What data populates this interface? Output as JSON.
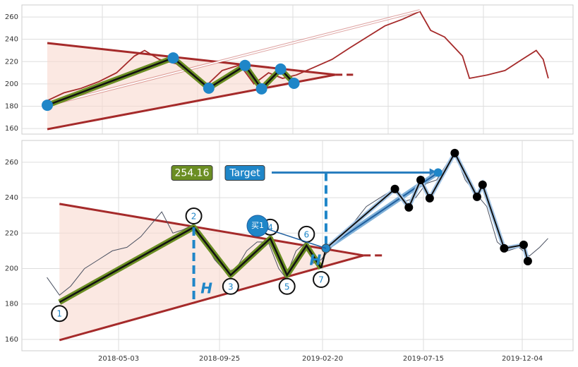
{
  "chart_data": [
    {
      "type": "line",
      "series": [
        {
          "color": "#a52a2a",
          "x": [
            "2018-01-20",
            "2018-02-15",
            "2018-03-14",
            "2018-04-11",
            "2018-05-09",
            "2018-06-06",
            "2018-06-22",
            "2018-07-15",
            "2018-08-11",
            "2018-09-08",
            "2018-09-30",
            "2018-10-22",
            "2018-11-19",
            "2018-12-11",
            "2019-01-03",
            "2019-01-25",
            "2019-02-16",
            "2019-03-16",
            "2019-04-13",
            "2019-05-10",
            "2019-06-07",
            "2019-07-05",
            "2019-08-02",
            "2019-08-29",
            "2019-09-15",
            "2019-10-07",
            "2019-11-04",
            "2019-11-15",
            "2019-12-13",
            "2020-01-10",
            "2020-02-06",
            "2020-02-28",
            "2020-03-10",
            "2020-03-18"
          ],
          "values": [
            185,
            192,
            196,
            202,
            210,
            225,
            230,
            222,
            218,
            205,
            200,
            212,
            217,
            200,
            210,
            205,
            208,
            215,
            222,
            232,
            242,
            252,
            258,
            265,
            248,
            242,
            225,
            205,
            208,
            212,
            222,
            230,
            222,
            205
          ]
        }
      ],
      "xlim": [
        "2017-12-11",
        "2020-04-26"
      ],
      "ylim": [
        155,
        270.8
      ],
      "yticks": [
        160,
        180,
        200,
        220,
        240,
        260
      ],
      "grid": true,
      "pattern": {
        "x": [
          "2018-01-20",
          "2018-08-06",
          "2018-10-01",
          "2018-11-27",
          "2018-12-23",
          "2019-01-22",
          "2019-02-12"
        ],
        "values": [
          180.9,
          223.3,
          196.2,
          216.5,
          195.6,
          213.3,
          200.6
        ]
      },
      "triangle": {
        "x": [
          "2018-01-20",
          "2019-04-18"
        ],
        "upper": [
          236.6,
          208.2
        ],
        "lower": [
          159.4,
          208.2
        ],
        "extension_x": "2019-05-16"
      },
      "arrow": {
        "x": [
          "2018-01-20",
          "2019-08-29"
        ],
        "values": [
          180.9,
          265.7
        ]
      }
    },
    {
      "type": "line",
      "series": [
        {
          "color": "#4a5060",
          "x": [
            "2018-01-20",
            "2018-02-07",
            "2018-02-23",
            "2018-03-15",
            "2018-04-04",
            "2018-04-24",
            "2018-05-15",
            "2018-06-04",
            "2018-06-19",
            "2018-07-04",
            "2018-07-20",
            "2018-08-04",
            "2018-08-19",
            "2018-09-03",
            "2018-09-18",
            "2018-10-04",
            "2018-10-19",
            "2018-11-03",
            "2018-11-18",
            "2018-12-04",
            "2018-12-19",
            "2018-12-29",
            "2019-01-13",
            "2019-01-28",
            "2019-02-07",
            "2019-02-18",
            "2019-03-05",
            "2019-03-20",
            "2019-04-04",
            "2019-04-24",
            "2019-05-14",
            "2019-06-03",
            "2019-06-19",
            "2019-07-04",
            "2019-07-19",
            "2019-08-03",
            "2019-08-19",
            "2019-08-29",
            "2019-09-13",
            "2019-09-29",
            "2019-10-14",
            "2019-10-29",
            "2019-11-13",
            "2019-11-29",
            "2019-12-14",
            "2019-12-29",
            "2020-01-10"
          ],
          "values": [
            195,
            185,
            190,
            200,
            205,
            210,
            212,
            218,
            225,
            232,
            220,
            222,
            225,
            215,
            205,
            198,
            200,
            210,
            215,
            215,
            200,
            195,
            210,
            215,
            203,
            205,
            212,
            220,
            225,
            235,
            240,
            245,
            238,
            240,
            248,
            250,
            260,
            265,
            250,
            242,
            235,
            215,
            210,
            212,
            207,
            212,
            217
          ]
        }
      ],
      "xlim": [
        "2017-12-15",
        "2020-02-15"
      ],
      "ylim": [
        153.6,
        272.3
      ],
      "xticks": [
        "2018-05-03",
        "2018-09-25",
        "2019-02-20",
        "2019-07-15",
        "2019-12-04"
      ],
      "yticks": [
        160,
        180,
        200,
        220,
        240,
        260
      ],
      "grid": true,
      "pattern": {
        "x": [
          "2018-02-07",
          "2018-08-19",
          "2018-10-11",
          "2018-12-07",
          "2018-12-31",
          "2019-01-28",
          "2019-02-18"
        ],
        "values": [
          181,
          223.3,
          196.3,
          217,
          196.3,
          213,
          200.2
        ],
        "labels": [
          "1",
          "2",
          "3",
          "4",
          "5",
          "6",
          "7"
        ]
      },
      "breakout": {
        "x": "2019-02-25",
        "value": 211.4,
        "label": "买1"
      },
      "triangle": {
        "x": [
          "2018-02-07",
          "2019-04-20"
        ],
        "upper": [
          236.5,
          207.4
        ],
        "lower": [
          159.6,
          207.4
        ],
        "extension_x": "2019-05-20"
      },
      "h_label": "H",
      "h_lines": [
        {
          "x": "2018-08-19",
          "values": [
            223.3,
            180.3
          ]
        },
        {
          "x": "2019-02-25",
          "values": [
            254.16,
            211.4
          ]
        }
      ],
      "target": {
        "name": "Target",
        "value": 254.16,
        "x": [
          "2018-12-09",
          "2019-08-05"
        ]
      },
      "swing": {
        "x": [
          "2019-06-04",
          "2019-06-24",
          "2019-07-11",
          "2019-07-24",
          "2019-08-29",
          "2019-09-30",
          "2019-10-08",
          "2019-11-08",
          "2019-12-06",
          "2019-12-12"
        ],
        "values": [
          244.9,
          234.5,
          250,
          239.7,
          265.2,
          240.5,
          247.3,
          211.4,
          213.4,
          204.2
        ]
      }
    }
  ]
}
